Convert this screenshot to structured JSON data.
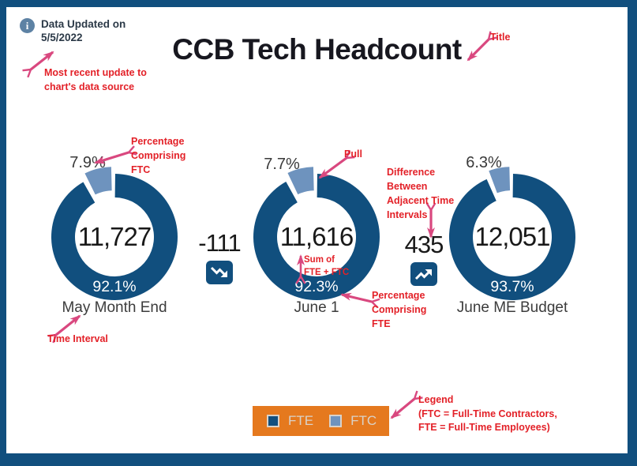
{
  "header": {
    "updated_label": "Data Updated on",
    "updated_date": "5/5/2022",
    "title": "CCB Tech Headcount"
  },
  "chart_data": {
    "type": "donut",
    "title": "CCB Tech Headcount",
    "series_colors": {
      "fte": "#114F7E",
      "ftc": "#6E93BE"
    },
    "periods": [
      {
        "label": "May Month End",
        "total": "11,727",
        "fte_pct": 92.1,
        "ftc_pct": 7.9,
        "fte_label": "92.1%",
        "ftc_label": "7.9%"
      },
      {
        "label": "June 1",
        "total": "11,616",
        "fte_pct": 92.3,
        "ftc_pct": 7.7,
        "fte_label": "92.3%",
        "ftc_label": "7.7%"
      },
      {
        "label": "June ME Budget",
        "total": "12,051",
        "fte_pct": 93.7,
        "ftc_pct": 6.3,
        "fte_label": "93.7%",
        "ftc_label": "6.3%"
      }
    ],
    "deltas": [
      {
        "value": "-111",
        "direction": "down"
      },
      {
        "value": "435",
        "direction": "up"
      }
    ]
  },
  "legend": {
    "background": "#E5791E",
    "items": [
      {
        "label": "FTE",
        "color": "#114F7E"
      },
      {
        "label": "FTC",
        "color": "#6E93BE"
      }
    ]
  },
  "annotations": {
    "updated": {
      "lines": [
        "Most recent update to",
        "chart's data source"
      ]
    },
    "title": {
      "lines": [
        "Title"
      ]
    },
    "ftc_pct": {
      "lines": [
        "Percentage",
        "Comprising",
        "FTC"
      ]
    },
    "pull": {
      "lines": [
        "Pull"
      ]
    },
    "diff": {
      "lines": [
        "Difference",
        "Between",
        "Adjacent Time",
        "Intervals"
      ]
    },
    "sum": {
      "lines": [
        "Sum of",
        "FTE + FTC"
      ]
    },
    "fte_pct": {
      "lines": [
        "Percentage",
        "Comprising",
        "FTE"
      ]
    },
    "time": {
      "lines": [
        "Time Interval"
      ]
    },
    "legend": {
      "lines": [
        "Legend",
        "(FTC = Full-Time Contractors,",
        "FTE = Full-Time Employees)"
      ]
    }
  }
}
